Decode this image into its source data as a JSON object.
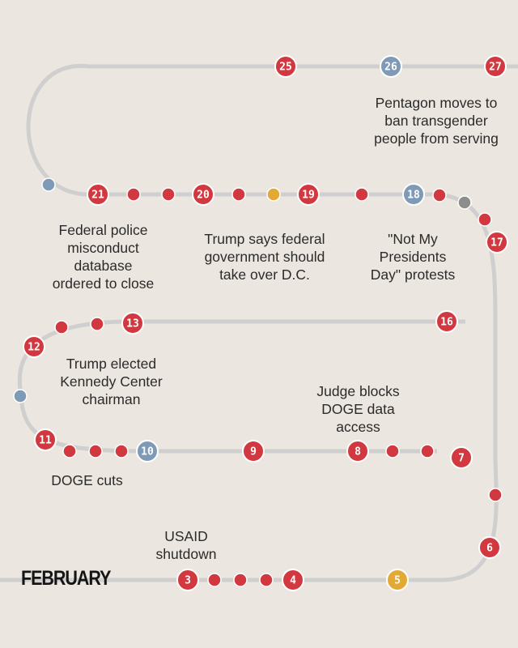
{
  "month": "FEBRUARY",
  "colors": {
    "background": "#ebe6df",
    "path": "#cfcfcf",
    "red": "#d2383f",
    "blue": "#7f9ab6",
    "gold": "#e2a935",
    "gray": "#8d8d8d",
    "ring": "#ffffff"
  },
  "events": [
    {
      "key": "usaid",
      "text": "USAID\nshutdown"
    },
    {
      "key": "doge-cuts",
      "text": "DOGE cuts"
    },
    {
      "key": "judge",
      "text": "Judge blocks\nDOGE data\naccess"
    },
    {
      "key": "kennedy",
      "text": "Trump elected\nKennedy Center\nchairman"
    },
    {
      "key": "presidents-day",
      "text": "\"Not My\nPresidents\nDay\" protests"
    },
    {
      "key": "dc",
      "text": "Trump says federal\ngovernment should\ntake over D.C."
    },
    {
      "key": "police-db",
      "text": "Federal police\nmisconduct\ndatabase\nordered to close"
    },
    {
      "key": "pentagon",
      "text": "Pentagon moves to\nban transgender\npeople from serving"
    }
  ],
  "days": [
    {
      "label": "3",
      "color": "red"
    },
    {
      "label": "",
      "color": "red"
    },
    {
      "label": "",
      "color": "red"
    },
    {
      "label": "",
      "color": "red"
    },
    {
      "label": "4",
      "color": "red"
    },
    {
      "label": "5",
      "color": "gold"
    },
    {
      "label": "6",
      "color": "red"
    },
    {
      "label": "",
      "color": "red"
    },
    {
      "label": "7",
      "color": "red"
    },
    {
      "label": "",
      "color": "red"
    },
    {
      "label": "",
      "color": "red"
    },
    {
      "label": "8",
      "color": "red"
    },
    {
      "label": "9",
      "color": "red"
    },
    {
      "label": "10",
      "color": "blue"
    },
    {
      "label": "",
      "color": "red"
    },
    {
      "label": "",
      "color": "red"
    },
    {
      "label": "",
      "color": "red"
    },
    {
      "label": "11",
      "color": "red"
    },
    {
      "label": "",
      "color": "blue"
    },
    {
      "label": "12",
      "color": "red"
    },
    {
      "label": "",
      "color": "red"
    },
    {
      "label": "",
      "color": "red"
    },
    {
      "label": "13",
      "color": "red"
    },
    {
      "label": "16",
      "color": "red"
    },
    {
      "label": "17",
      "color": "red"
    },
    {
      "label": "",
      "color": "red"
    },
    {
      "label": "",
      "color": "gray"
    },
    {
      "label": "",
      "color": "red"
    },
    {
      "label": "18",
      "color": "blue"
    },
    {
      "label": "",
      "color": "red"
    },
    {
      "label": "19",
      "color": "red"
    },
    {
      "label": "",
      "color": "gold"
    },
    {
      "label": "",
      "color": "red"
    },
    {
      "label": "20",
      "color": "red"
    },
    {
      "label": "",
      "color": "red"
    },
    {
      "label": "",
      "color": "red"
    },
    {
      "label": "21",
      "color": "red"
    },
    {
      "label": "",
      "color": "blue"
    },
    {
      "label": "25",
      "color": "red"
    },
    {
      "label": "26",
      "color": "blue"
    },
    {
      "label": "27",
      "color": "red"
    }
  ]
}
